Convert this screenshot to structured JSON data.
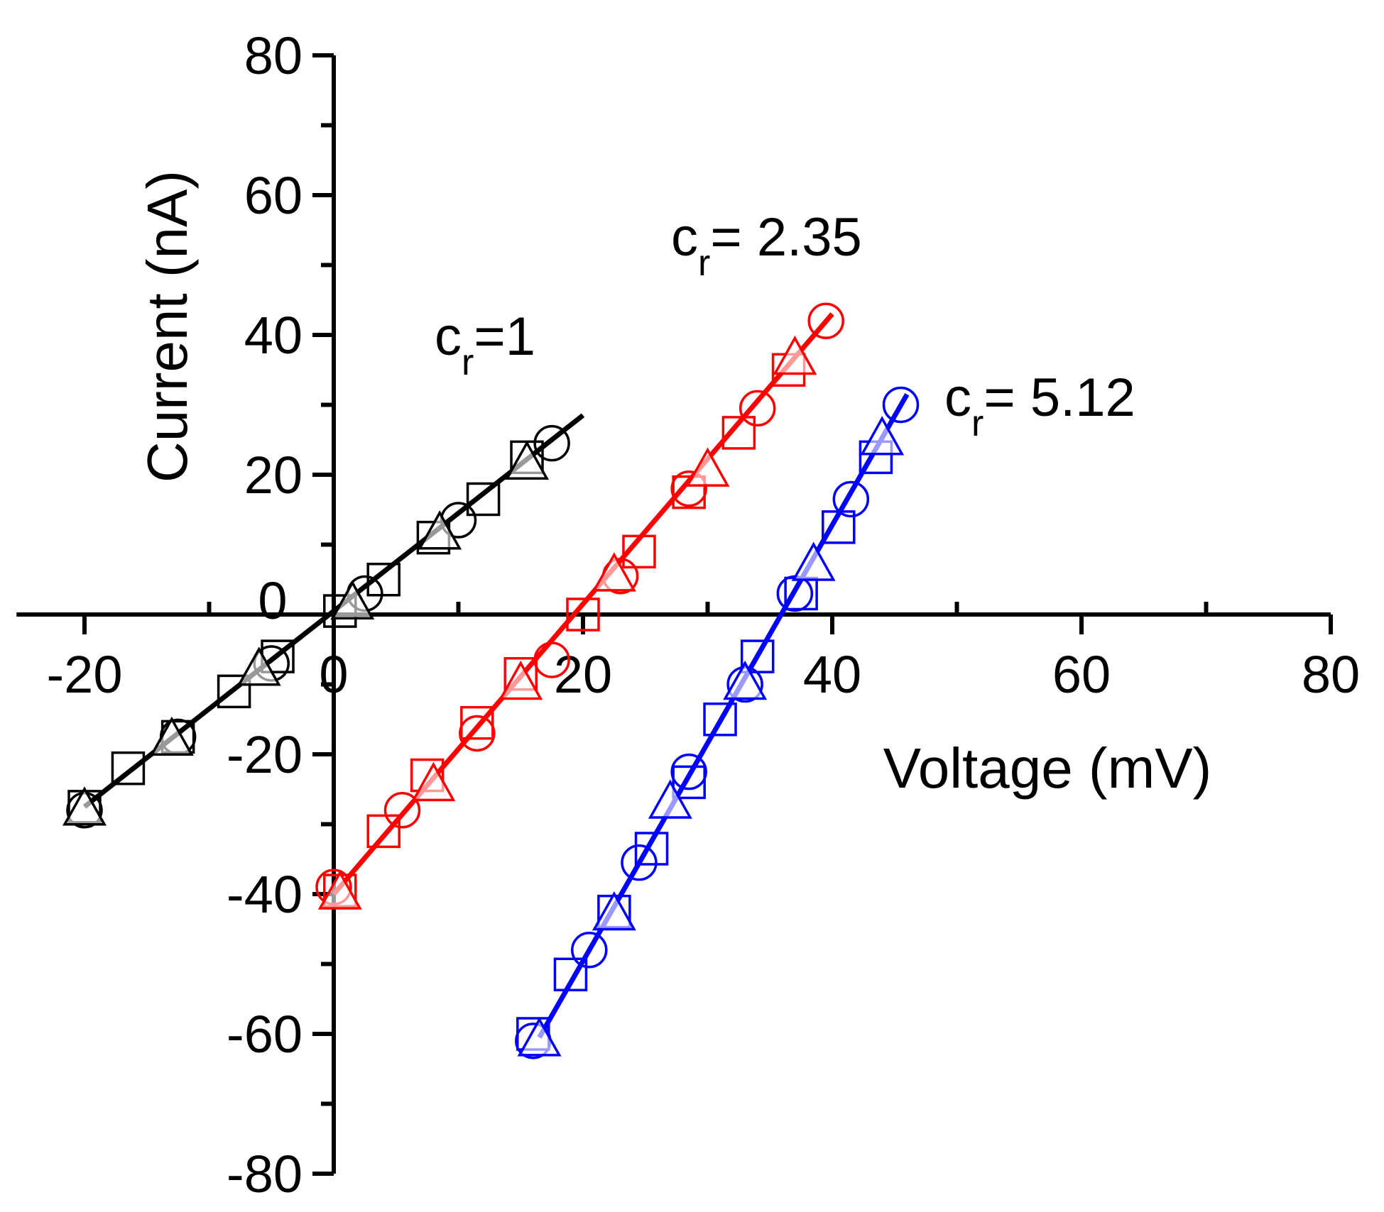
{
  "chart_data": {
    "type": "scatter",
    "title": "",
    "xlabel": "Voltage (mV)",
    "ylabel": "Current (nA)",
    "xlim": [
      -25,
      80
    ],
    "ylim": [
      -80,
      80
    ],
    "x_ticks": [
      -20,
      0,
      20,
      40,
      60,
      80
    ],
    "y_ticks": [
      -80,
      -60,
      -40,
      -20,
      0,
      20,
      40,
      60,
      80
    ],
    "x_tick_labels": [
      "-20",
      "0",
      "20",
      "40",
      "60",
      "80"
    ],
    "y_tick_labels": [
      "-80",
      "-60",
      "-40",
      "-20",
      "0",
      "20",
      "40",
      "60",
      "80"
    ],
    "grid": false,
    "series": [
      {
        "name": "cr=1",
        "label_main": "c",
        "label_sub": "r",
        "label_rest": "=1",
        "color": "#000000",
        "fit_line": {
          "x": [
            -20,
            20
          ],
          "y": [
            -27.5,
            28.5
          ]
        },
        "markers": {
          "circle": {
            "x": [
              -20,
              -12.5,
              -5,
              2.5,
              10,
              17.5
            ],
            "y": [
              -28,
              -17.5,
              -7,
              3,
              13.5,
              24.5
            ]
          },
          "square": {
            "x": [
              -20,
              -16.5,
              -12.5,
              -8,
              -4.5,
              0.5,
              4,
              8,
              12,
              15.5
            ],
            "y": [
              -27.5,
              -22,
              -17.5,
              -11,
              -6,
              0.5,
              5,
              11,
              16.5,
              22.5
            ]
          },
          "triangle": {
            "x": [
              -20,
              -13,
              -6,
              1.5,
              8.5,
              15.5
            ],
            "y": [
              -28,
              -18,
              -8,
              1.5,
              11.5,
              21.5
            ]
          }
        }
      },
      {
        "name": "cr= 2.35",
        "label_main": "c",
        "label_sub": "r",
        "label_rest": "= 2.35",
        "color": "#ff0000",
        "fit_line": {
          "x": [
            0,
            40
          ],
          "y": [
            -40,
            43
          ]
        },
        "markers": {
          "circle": {
            "x": [
              0,
              5.5,
              11.5,
              17.5,
              23,
              28.5,
              34,
              39.5
            ],
            "y": [
              -39,
              -28,
              -17,
              -6.5,
              5.5,
              18,
              29.5,
              42
            ]
          },
          "square": {
            "x": [
              0.5,
              4,
              7.5,
              11.5,
              15,
              20,
              24.5,
              28.5,
              32.5,
              36.5
            ],
            "y": [
              -39.5,
              -31,
              -23,
              -15.5,
              -8.5,
              0,
              9,
              17.5,
              26,
              35
            ]
          },
          "triangle": {
            "x": [
              0.5,
              8,
              15,
              22.5,
              30,
              37
            ],
            "y": [
              -40,
              -24.5,
              -10,
              5.5,
              20.5,
              36.5
            ]
          }
        }
      },
      {
        "name": "cr= 5.12",
        "label_main": "c",
        "label_sub": "r",
        "label_rest": "= 5.12",
        "color": "#0000ff",
        "fit_line": {
          "x": [
            16.5,
            46
          ],
          "y": [
            -60.5,
            31.5
          ]
        },
        "markers": {
          "circle": {
            "x": [
              16,
              20.5,
              24.5,
              28.5,
              33,
              37,
              41.5,
              45.5
            ],
            "y": [
              -61,
              -48,
              -35.5,
              -22.5,
              -10,
              3,
              16.5,
              30
            ]
          },
          "square": {
            "x": [
              16,
              19,
              22.5,
              25.5,
              28.5,
              31,
              34,
              37.5,
              40.5,
              43.5
            ],
            "y": [
              -60,
              -51.5,
              -42.5,
              -33.5,
              -24,
              -15,
              -6,
              3,
              12.5,
              22.5
            ]
          },
          "triangle": {
            "x": [
              16.5,
              22.5,
              27,
              33,
              38.5,
              44
            ],
            "y": [
              -61,
              -43,
              -27,
              -10,
              7,
              25
            ]
          }
        }
      }
    ],
    "legend": "none"
  }
}
